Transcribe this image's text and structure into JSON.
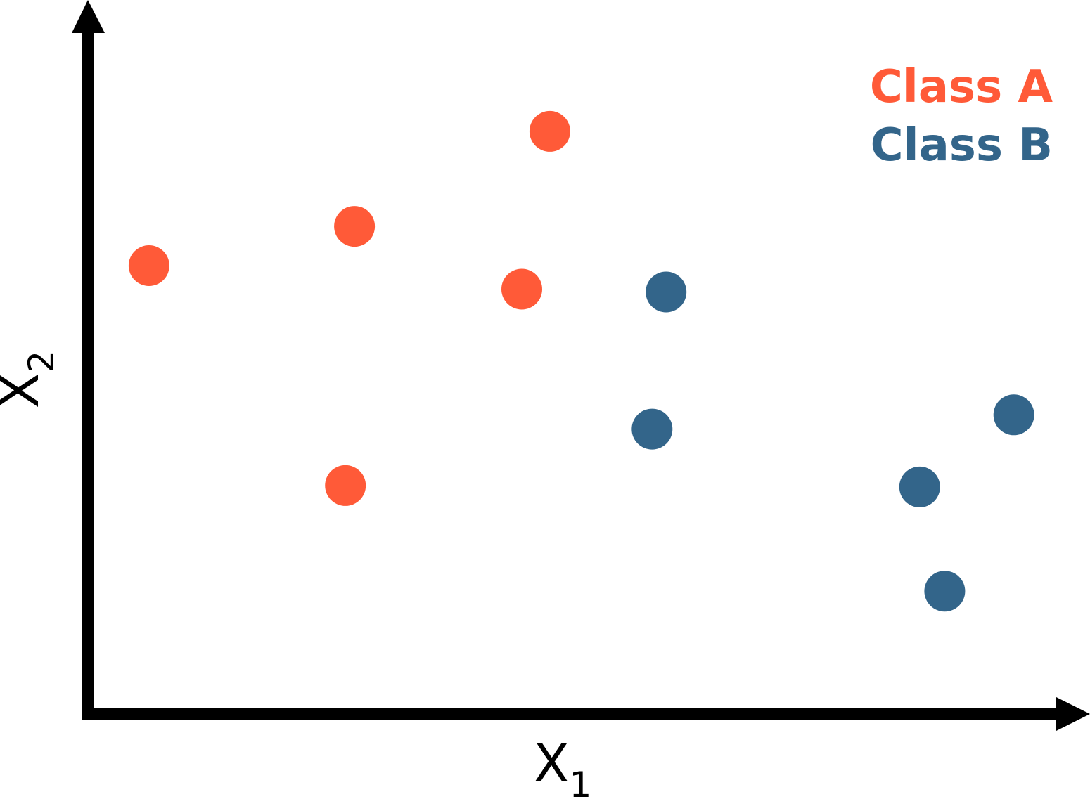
{
  "chart_data": {
    "type": "scatter",
    "title": "",
    "xlabel": "X",
    "xlabel_sub": "1",
    "ylabel": "X",
    "ylabel_sub": "2",
    "xlim": [
      0,
      100
    ],
    "ylim": [
      0,
      100
    ],
    "grid": false,
    "legend_position": "top-right",
    "series": [
      {
        "name": "Class A",
        "color": "#FF5A38",
        "points": [
          {
            "x": 6.1,
            "y": 62.8
          },
          {
            "x": 26.6,
            "y": 68.3
          },
          {
            "x": 46.1,
            "y": 81.6
          },
          {
            "x": 43.3,
            "y": 59.5
          },
          {
            "x": 25.7,
            "y": 32.0
          }
        ]
      },
      {
        "name": "Class B",
        "color": "#33658A",
        "points": [
          {
            "x": 57.7,
            "y": 59.1
          },
          {
            "x": 56.3,
            "y": 39.9
          },
          {
            "x": 92.4,
            "y": 41.9
          },
          {
            "x": 83.0,
            "y": 31.8
          },
          {
            "x": 85.5,
            "y": 17.2
          }
        ]
      }
    ]
  }
}
